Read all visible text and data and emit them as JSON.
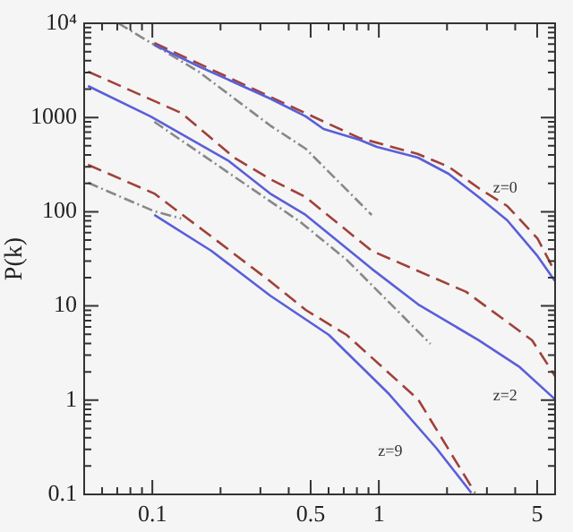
{
  "chart_data": {
    "type": "line",
    "ylabel": "P(k)",
    "log": "xy",
    "grid": false,
    "legend": false,
    "marker": "none",
    "xlim": [
      0.05,
      6
    ],
    "ylim": [
      0.1,
      10000
    ],
    "xticks": [
      {
        "value": 0.05,
        "label": null
      },
      {
        "value": 0.06,
        "label": null
      },
      {
        "value": 0.07,
        "label": null
      },
      {
        "value": 0.08,
        "label": null
      },
      {
        "value": 0.09,
        "label": null
      },
      0.1,
      {
        "value": 0.2,
        "label": null
      },
      {
        "value": 0.3,
        "label": null
      },
      {
        "value": 0.4,
        "label": null
      },
      0.5,
      {
        "value": 0.6,
        "label": null
      },
      {
        "value": 0.7,
        "label": null
      },
      {
        "value": 0.8,
        "label": null
      },
      {
        "value": 0.9,
        "label": null
      },
      1,
      {
        "value": 2,
        "label": null
      },
      {
        "value": 3,
        "label": null
      },
      {
        "value": 4,
        "label": null
      },
      5
    ],
    "yticks": [
      0.1,
      {
        "value": 0.2,
        "label": null
      },
      {
        "value": 0.3,
        "label": null
      },
      {
        "value": 0.4,
        "label": null
      },
      {
        "value": 0.5,
        "label": null
      },
      {
        "value": 0.6,
        "label": null
      },
      {
        "value": 0.7,
        "label": null
      },
      {
        "value": 0.8,
        "label": null
      },
      {
        "value": 0.9,
        "label": null
      },
      1,
      {
        "value": 2,
        "label": null
      },
      {
        "value": 3,
        "label": null
      },
      {
        "value": 4,
        "label": null
      },
      {
        "value": 5,
        "label": null
      },
      {
        "value": 6,
        "label": null
      },
      {
        "value": 7,
        "label": null
      },
      {
        "value": 8,
        "label": null
      },
      {
        "value": 9,
        "label": null
      },
      10,
      {
        "value": 20,
        "label": null
      },
      {
        "value": 30,
        "label": null
      },
      {
        "value": 40,
        "label": null
      },
      {
        "value": 50,
        "label": null
      },
      {
        "value": 60,
        "label": null
      },
      {
        "value": 70,
        "label": null
      },
      {
        "value": 80,
        "label": null
      },
      {
        "value": 90,
        "label": null
      },
      100,
      {
        "value": 200,
        "label": null
      },
      {
        "value": 300,
        "label": null
      },
      {
        "value": 400,
        "label": null
      },
      {
        "value": 500,
        "label": null
      },
      {
        "value": 600,
        "label": null
      },
      {
        "value": 700,
        "label": null
      },
      {
        "value": 800,
        "label": null
      },
      {
        "value": 900,
        "label": null
      },
      1000,
      {
        "value": 2000,
        "label": null
      },
      {
        "value": 3000,
        "label": null
      },
      {
        "value": 4000,
        "label": null
      },
      {
        "value": 5000,
        "label": null
      },
      {
        "value": 6000,
        "label": null
      },
      {
        "value": 7000,
        "label": null
      },
      {
        "value": 8000,
        "label": null
      },
      {
        "value": 9000,
        "label": null
      },
      {
        "value": 10000,
        "label": "10⁴"
      }
    ],
    "series": [
      {
        "color": "#5a5fd8",
        "line_style": "solid",
        "x": [
          0.102,
          0.16,
          0.23,
          0.331,
          0.475,
          0.57,
          0.819,
          0.98,
          1.49,
          2.03,
          2.76,
          3.69,
          5.02,
          6.0
        ],
        "values": [
          5900,
          3500,
          2360,
          1590,
          1030,
          755,
          581,
          488,
          375,
          253,
          143,
          81,
          33.8,
          18.3
        ]
      },
      {
        "color": "#a0413a",
        "line_style": "dashed",
        "x": [
          0.102,
          0.331,
          0.819,
          1.49,
          2.03,
          2.76,
          3.69,
          5.02,
          6.0
        ],
        "values": [
          6180,
          1660,
          607,
          409,
          301,
          178,
          115,
          52,
          22.8
        ]
      },
      {
        "color": "#888888",
        "line_style": "dotted",
        "x": [
          0.0708,
          0.16,
          0.331,
          0.475,
          0.93
        ],
        "values": [
          10000,
          3070,
          824,
          467,
          92.5
        ]
      },
      {
        "color": "#5a5fd8",
        "line_style": "solid",
        "x": [
          0.052,
          0.098,
          0.218,
          0.331,
          0.475,
          0.93,
          1.49,
          2.76,
          4.19,
          6.0
        ],
        "values": [
          2160,
          1030,
          344,
          156,
          92.5,
          24.8,
          10.4,
          4.32,
          2.24,
          1.02
        ]
      },
      {
        "color": "#a0413a",
        "line_style": "dashed",
        "x": [
          0.052,
          0.134,
          0.23,
          0.331,
          0.475,
          0.93,
          2.43,
          4.75,
          6.0
        ],
        "values": [
          3070,
          1120,
          375,
          222,
          143,
          38.5,
          14.1,
          4.32,
          1.8
        ]
      },
      {
        "color": "#888888",
        "line_style": "dotted",
        "x": [
          0.102,
          0.451,
          0.721,
          1.69
        ],
        "values": [
          900,
          77.6,
          30.9,
          3.95
        ]
      },
      {
        "color": "#5a5fd8",
        "line_style": "solid",
        "x": [
          0.102,
          0.182,
          0.331,
          0.602,
          1.11,
          1.79,
          2.56
        ],
        "values": [
          92.5,
          38.5,
          12.9,
          4.92,
          1.16,
          0.312,
          0.104
        ]
      },
      {
        "color": "#a0413a",
        "line_style": "dashed",
        "x": [
          0.052,
          0.102,
          0.182,
          0.331,
          0.475,
          0.721,
          1.49,
          2.66
        ],
        "values": [
          315,
          156,
          54.7,
          18.3,
          9.08,
          4.92,
          1.02,
          0.104
        ]
      },
      {
        "color": "#888888",
        "line_style": "dotted",
        "x": [
          0.052,
          0.102,
          0.134
        ],
        "values": [
          203,
          101,
          84.7
        ]
      }
    ],
    "annotations": [
      "z=0",
      "z=2",
      "z=9"
    ]
  }
}
